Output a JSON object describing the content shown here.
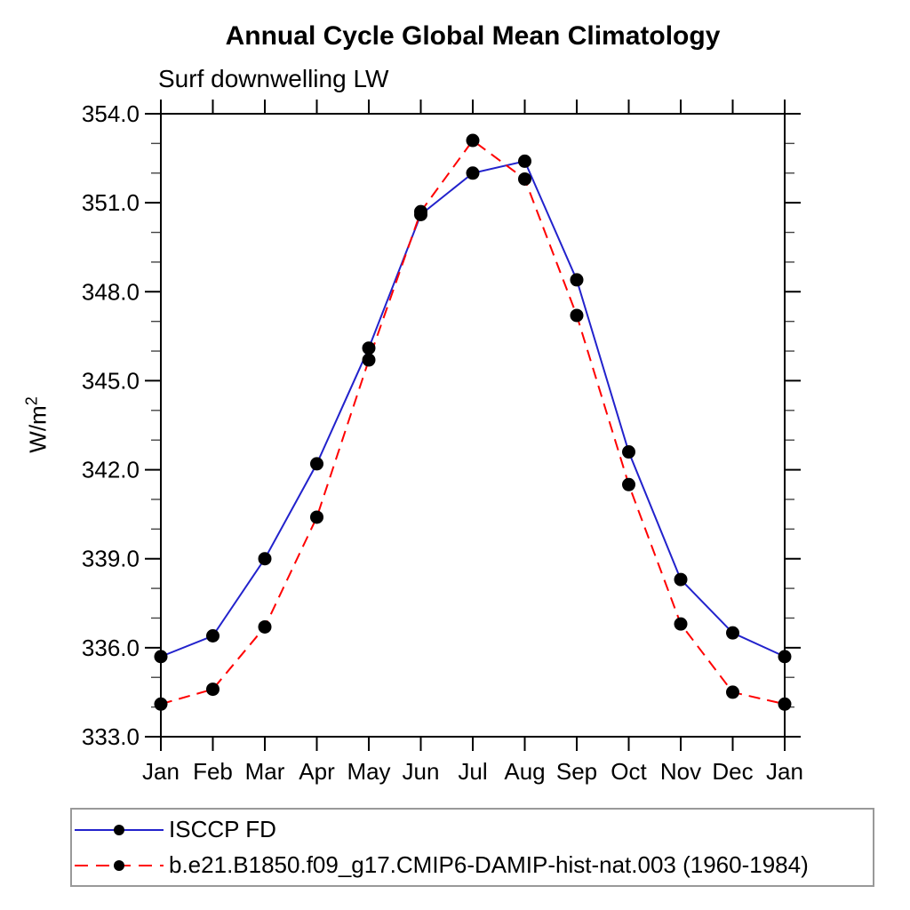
{
  "chart_data": {
    "type": "line",
    "title": "Annual Cycle Global Mean Climatology",
    "subtitle": "Surf downwelling LW",
    "ylabel_base": "W/m",
    "ylabel_exponent": "2",
    "categories": [
      "Jan",
      "Feb",
      "Mar",
      "Apr",
      "May",
      "Jun",
      "Jul",
      "Aug",
      "Sep",
      "Oct",
      "Nov",
      "Dec",
      "Jan"
    ],
    "ylim": [
      333.0,
      354.0
    ],
    "ytick_step": 3.0,
    "yminor_step": 1.0,
    "ytick_labels": [
      "333.0",
      "336.0",
      "339.0",
      "342.0",
      "345.0",
      "348.0",
      "351.0",
      "354.0"
    ],
    "grid": false,
    "legend_position": "bottom-left",
    "frame_color": "#000000",
    "series": [
      {
        "name": "ISCCP FD",
        "line_color": "#2222cc",
        "line_style": "solid",
        "marker": "filled-circle",
        "marker_color": "#000000",
        "values": [
          335.7,
          336.4,
          339.0,
          342.2,
          346.1,
          350.6,
          352.0,
          352.4,
          348.4,
          342.6,
          338.3,
          336.5,
          335.7
        ]
      },
      {
        "name": "b.e21.B1850.f09_g17.CMIP6-DAMIP-hist-nat.003 (1960-1984)",
        "line_color": "#ff0000",
        "line_style": "dashed",
        "marker": "filled-circle",
        "marker_color": "#000000",
        "values": [
          334.1,
          334.6,
          336.7,
          340.4,
          345.7,
          350.7,
          353.1,
          351.8,
          347.2,
          341.5,
          336.8,
          334.5,
          334.1
        ]
      }
    ]
  }
}
